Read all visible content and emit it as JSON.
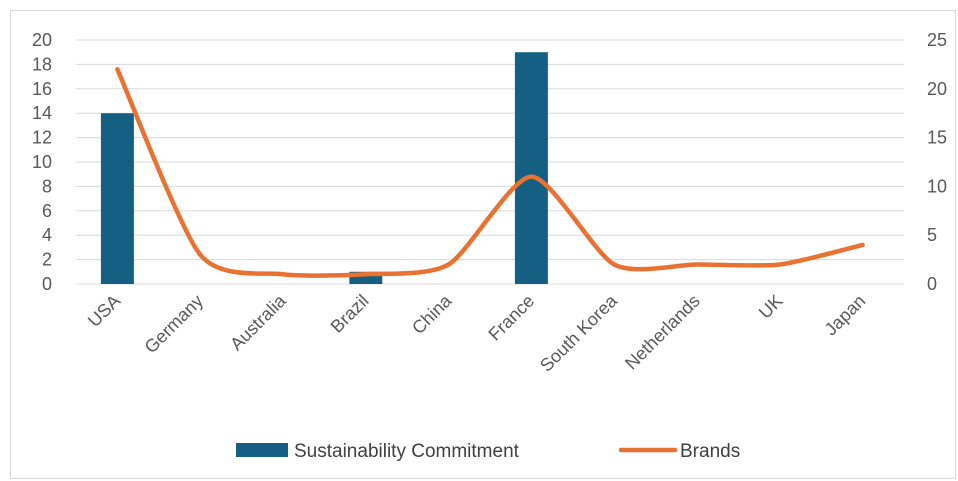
{
  "chart_data": {
    "type": "bar",
    "categories": [
      "USA",
      "Germany",
      "Australia",
      "Brazil",
      "China",
      "France",
      "South Korea",
      "Netherlands",
      "UK",
      "Japan"
    ],
    "series": [
      {
        "name": "Sustainability Commitment",
        "chart_type": "bar",
        "axis": "left",
        "color": "#156082",
        "values": [
          14,
          0,
          0,
          1,
          0,
          19,
          0,
          0,
          0,
          0
        ]
      },
      {
        "name": "Brands",
        "chart_type": "line",
        "axis": "right",
        "color": "#E97132",
        "values": [
          22,
          3,
          1,
          1,
          2,
          11,
          2,
          2,
          2,
          4
        ]
      }
    ],
    "y_left": {
      "ylim": [
        0,
        20
      ],
      "ticks": [
        "0",
        "2",
        "4",
        "6",
        "8",
        "10",
        "12",
        "14",
        "16",
        "18",
        "20"
      ]
    },
    "y_right": {
      "ylim": [
        0,
        25
      ],
      "ticks": [
        "0",
        "5",
        "10",
        "15",
        "20",
        "25"
      ]
    },
    "grid": true,
    "legend_position": "bottom"
  }
}
